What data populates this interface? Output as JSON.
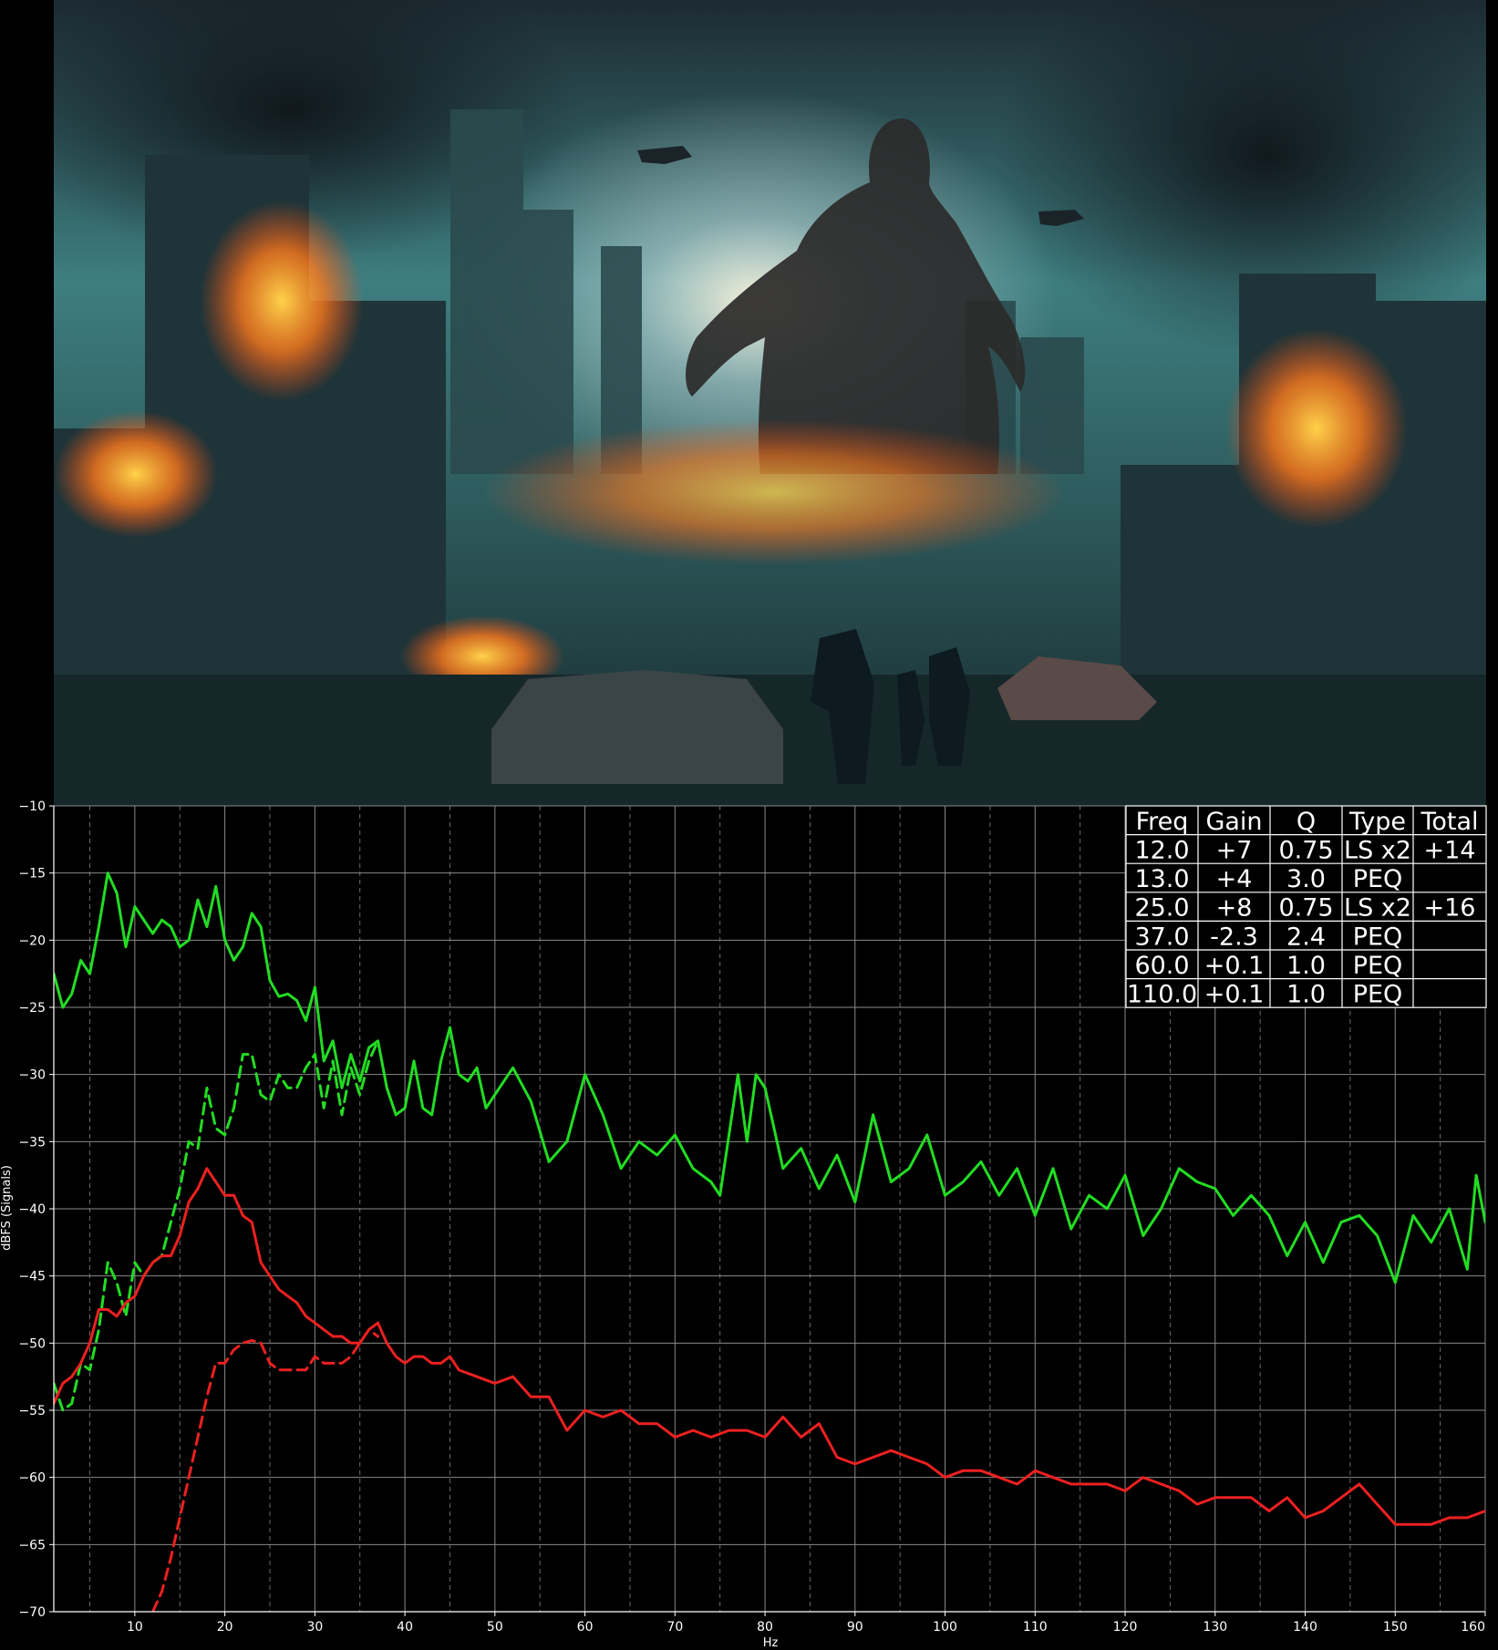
{
  "poster": {
    "colors": {
      "sky_top": "#1c2a31",
      "sky_glow": "#dfeff0",
      "haze": "#3e7e80",
      "smoke": "#0f151a",
      "fire": "#ff7a1c",
      "fire_core": "#ffd24a",
      "buildings": "#1e3438",
      "street": "#16272a"
    }
  },
  "chart_data": {
    "type": "line",
    "xlabel": "Hz",
    "ylabel": "dBFS (Signals)",
    "xlim": [
      1,
      160
    ],
    "ylim": [
      -70,
      -10
    ],
    "x_ticks": [
      10,
      20,
      30,
      40,
      50,
      60,
      70,
      80,
      90,
      100,
      110,
      120,
      130,
      140,
      150,
      160
    ],
    "x_minor_ticks": [
      5,
      15,
      25,
      35,
      45,
      55,
      65,
      75,
      85,
      95,
      105,
      115,
      125,
      135,
      145,
      155
    ],
    "y_ticks": [
      -10,
      -15,
      -20,
      -25,
      -30,
      -35,
      -40,
      -45,
      -50,
      -55,
      -60,
      -65,
      -70
    ],
    "grid": true,
    "background": "#000000",
    "series": [
      {
        "color": "#22dd22",
        "style": "solid",
        "x": [
          1,
          2,
          3,
          4,
          5,
          6,
          7,
          8,
          9,
          10,
          12,
          13,
          14,
          15,
          16,
          17,
          18,
          19,
          20,
          21,
          22,
          23,
          24,
          25,
          26,
          27,
          28,
          29,
          30,
          31,
          32,
          33,
          34,
          35,
          36,
          37,
          38,
          39,
          40,
          41,
          42,
          43,
          44,
          45,
          46,
          47,
          48,
          49,
          50,
          52,
          54,
          56,
          58,
          60,
          62,
          64,
          66,
          68,
          70,
          72,
          74,
          75,
          77,
          78,
          79,
          80,
          82,
          84,
          86,
          88,
          90,
          92,
          94,
          96,
          98,
          100,
          102,
          104,
          106,
          108,
          110,
          112,
          114,
          116,
          118,
          120,
          122,
          124,
          126,
          128,
          130,
          132,
          134,
          136,
          138,
          140,
          142,
          144,
          146,
          148,
          150,
          152,
          154,
          156,
          158,
          159,
          160
        ],
        "y": [
          -22.5,
          -25,
          -24,
          -21.5,
          -22.5,
          -19,
          -15,
          -16.5,
          -20.5,
          -17.5,
          -19.5,
          -18.5,
          -19,
          -20.5,
          -20,
          -17,
          -19,
          -16,
          -20,
          -21.5,
          -20.5,
          -18,
          -19,
          -23,
          -24.2,
          -24,
          -24.5,
          -26,
          -23.5,
          -29,
          -27.5,
          -31,
          -28.5,
          -30.5,
          -28,
          -27.5,
          -31,
          -33,
          -32.5,
          -29,
          -32.5,
          -33,
          -29,
          -26.5,
          -30,
          -30.5,
          -29.5,
          -32.5,
          -31.5,
          -29.5,
          -32,
          -36.5,
          -35,
          -30,
          -33,
          -37,
          -35,
          -36,
          -34.5,
          -37,
          -38,
          -39,
          -30,
          -35,
          -30,
          -31,
          -37,
          -35.5,
          -38.5,
          -36,
          -39.5,
          -33,
          -38,
          -37,
          -34.5,
          -39,
          -38,
          -36.5,
          -39,
          -37,
          -40.5,
          -37,
          -41.5,
          -39,
          -40,
          -37.5,
          -42,
          -40,
          -37,
          -38,
          -38.5,
          -40.5,
          -39,
          -40.5,
          -43.5,
          -41,
          -44,
          -41,
          -40.5,
          -42,
          -45.5,
          -40.5,
          -42.5,
          -40,
          -44.5,
          -37.5,
          -41
        ]
      },
      {
        "color": "#22dd22",
        "style": "dashed",
        "x": [
          1,
          2,
          3,
          4,
          5,
          6,
          7,
          8,
          9,
          10,
          11,
          12,
          13,
          14,
          15,
          16,
          17,
          18,
          19,
          20,
          21,
          22,
          23,
          24,
          25,
          26,
          27,
          28,
          29,
          30,
          31,
          32,
          33,
          34,
          35,
          36,
          37
        ],
        "y": [
          -53,
          -55,
          -54.5,
          -51.5,
          -52,
          -49,
          -44,
          -45.5,
          -48,
          -44,
          -45,
          -44,
          -43.5,
          -41,
          -38.5,
          -35,
          -35.5,
          -31,
          -34,
          -34.5,
          -32.5,
          -28.5,
          -28.5,
          -31.5,
          -32,
          -30,
          -31,
          -31,
          -29.5,
          -28.5,
          -32.5,
          -29,
          -33,
          -29.5,
          -31.5,
          -29,
          -27.5
        ]
      },
      {
        "color": "#ee2020",
        "style": "solid",
        "x": [
          1,
          2,
          3,
          4,
          5,
          6,
          7,
          8,
          9,
          10,
          11,
          12,
          13,
          14,
          15,
          16,
          17,
          18,
          19,
          20,
          21,
          22,
          23,
          24,
          25,
          26,
          27,
          28,
          29,
          30,
          31,
          32,
          33,
          34,
          35,
          36,
          37,
          38,
          39,
          40,
          41,
          42,
          43,
          44,
          45,
          46,
          48,
          50,
          52,
          54,
          56,
          58,
          60,
          62,
          64,
          66,
          68,
          70,
          72,
          74,
          76,
          78,
          80,
          82,
          84,
          86,
          88,
          90,
          92,
          94,
          96,
          98,
          100,
          102,
          104,
          106,
          108,
          110,
          112,
          114,
          116,
          118,
          120,
          122,
          124,
          126,
          128,
          130,
          132,
          134,
          136,
          138,
          140,
          142,
          144,
          146,
          148,
          150,
          152,
          154,
          156,
          158,
          160
        ],
        "y": [
          -54.5,
          -53,
          -52.5,
          -51.5,
          -50,
          -47.5,
          -47.5,
          -48,
          -47,
          -46.5,
          -45,
          -44,
          -43.5,
          -43.5,
          -42,
          -39.5,
          -38.5,
          -37,
          -38,
          -39,
          -39,
          -40.5,
          -41,
          -44,
          -45,
          -46,
          -46.5,
          -47,
          -48,
          -48.5,
          -49,
          -49.5,
          -49.5,
          -50,
          -50,
          -49,
          -48.5,
          -50,
          -51,
          -51.5,
          -51,
          -51,
          -51.5,
          -51.5,
          -51,
          -52,
          -52.5,
          -53,
          -52.5,
          -54,
          -54,
          -56.5,
          -55,
          -55.5,
          -55,
          -56,
          -56,
          -57,
          -56.5,
          -57,
          -56.5,
          -56.5,
          -57,
          -55.5,
          -57,
          -56,
          -58.5,
          -59,
          -58.5,
          -58,
          -58.5,
          -59,
          -60,
          -59.5,
          -59.5,
          -60,
          -60.5,
          -59.5,
          -60,
          -60.5,
          -60.5,
          -60.5,
          -61,
          -60,
          -60.5,
          -61,
          -62,
          -61.5,
          -61.5,
          -61.5,
          -62.5,
          -61.5,
          -63,
          -62.5,
          -61.5,
          -60.5,
          -62,
          -63.5,
          -63.5,
          -63.5,
          -63,
          -63,
          -62.5
        ]
      },
      {
        "color": "#ee2020",
        "style": "dashed",
        "x": [
          12,
          13,
          14,
          15,
          16,
          17,
          18,
          19,
          20,
          21,
          22,
          23,
          24,
          25,
          26,
          27,
          28,
          29,
          30,
          31,
          32,
          33,
          34,
          35,
          36,
          37
        ],
        "y": [
          -70,
          -68.5,
          -66,
          -63,
          -60,
          -57,
          -54,
          -51.5,
          -51.5,
          -50.5,
          -50,
          -49.8,
          -50,
          -51.5,
          -52,
          -52,
          -52,
          -52,
          -51,
          -51.5,
          -51.5,
          -51.5,
          -51,
          -50,
          -49,
          -49.5
        ]
      }
    ],
    "table": {
      "headers": [
        "Freq",
        "Gain",
        "Q",
        "Type",
        "Total"
      ],
      "rows": [
        [
          "12.0",
          "+7",
          "0.75",
          "LS x2",
          "+14"
        ],
        [
          "13.0",
          "+4",
          "3.0",
          "PEQ",
          ""
        ],
        [
          "25.0",
          "+8",
          "0.75",
          "LS x2",
          "+16"
        ],
        [
          "37.0",
          "-2.3",
          "2.4",
          "PEQ",
          ""
        ],
        [
          "60.0",
          "+0.1",
          "1.0",
          "PEQ",
          ""
        ],
        [
          "110.0",
          "+0.1",
          "1.0",
          "PEQ",
          ""
        ]
      ]
    }
  }
}
